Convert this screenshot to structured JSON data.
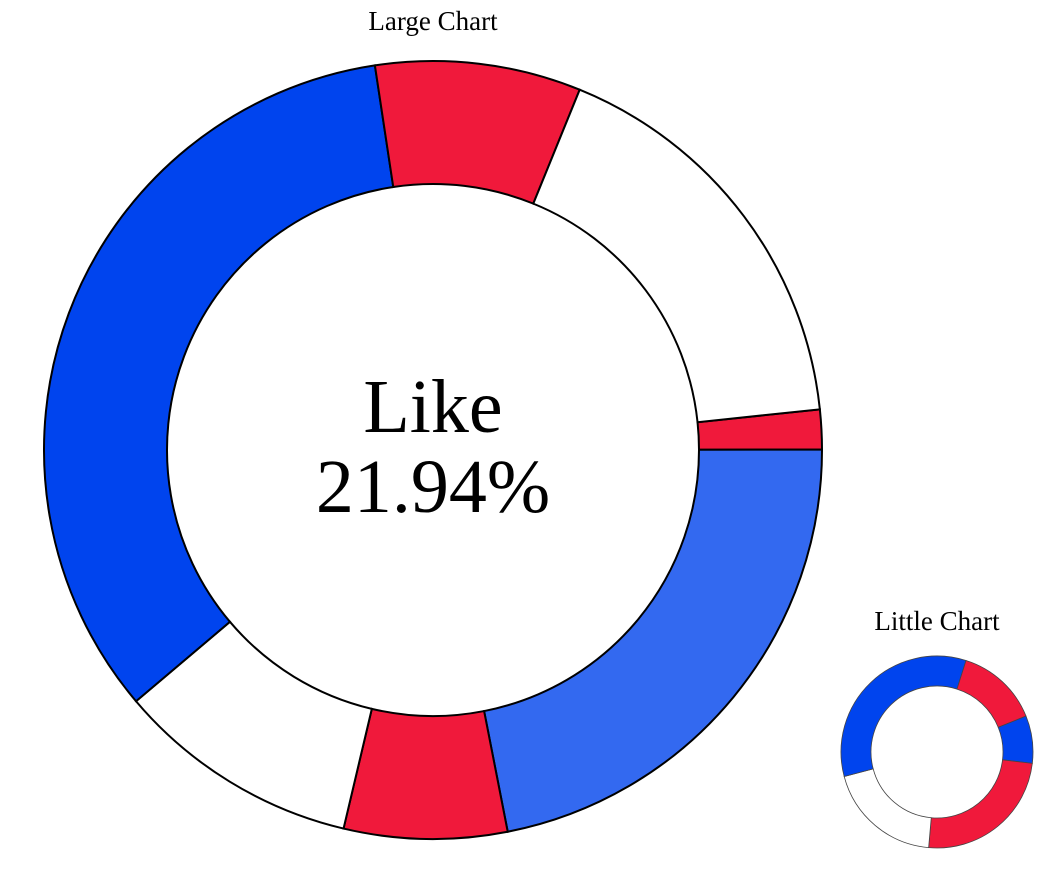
{
  "chart_data": [
    {
      "type": "donut",
      "title": "Large Chart",
      "center_label": "Like",
      "center_value": "21.94%",
      "series": [
        {
          "name": "",
          "value": 1.65,
          "color": "#f0193b"
        },
        {
          "name": "",
          "value": 21.94,
          "color": "#3369f0"
        },
        {
          "name": "",
          "value": 6.77,
          "color": "#f0193b"
        },
        {
          "name": "",
          "value": 10.13,
          "color": "#ffffff"
        },
        {
          "name": "",
          "value": 33.79,
          "color": "#0044ee"
        },
        {
          "name": "",
          "value": 8.54,
          "color": "#f0193b"
        },
        {
          "name": "",
          "value": 17.18,
          "color": "#ffffff"
        }
      ]
    },
    {
      "type": "donut",
      "title": "Little Chart",
      "series": [
        {
          "name": "",
          "value": 8.0,
          "color": "#0044ee"
        },
        {
          "name": "",
          "value": 24.5,
          "color": "#f0193b"
        },
        {
          "name": "",
          "value": 19.5,
          "color": "#ffffff"
        },
        {
          "name": "",
          "value": 34.0,
          "color": "#0044ee"
        },
        {
          "name": "",
          "value": 14.0,
          "color": "#f0193b"
        }
      ]
    }
  ]
}
